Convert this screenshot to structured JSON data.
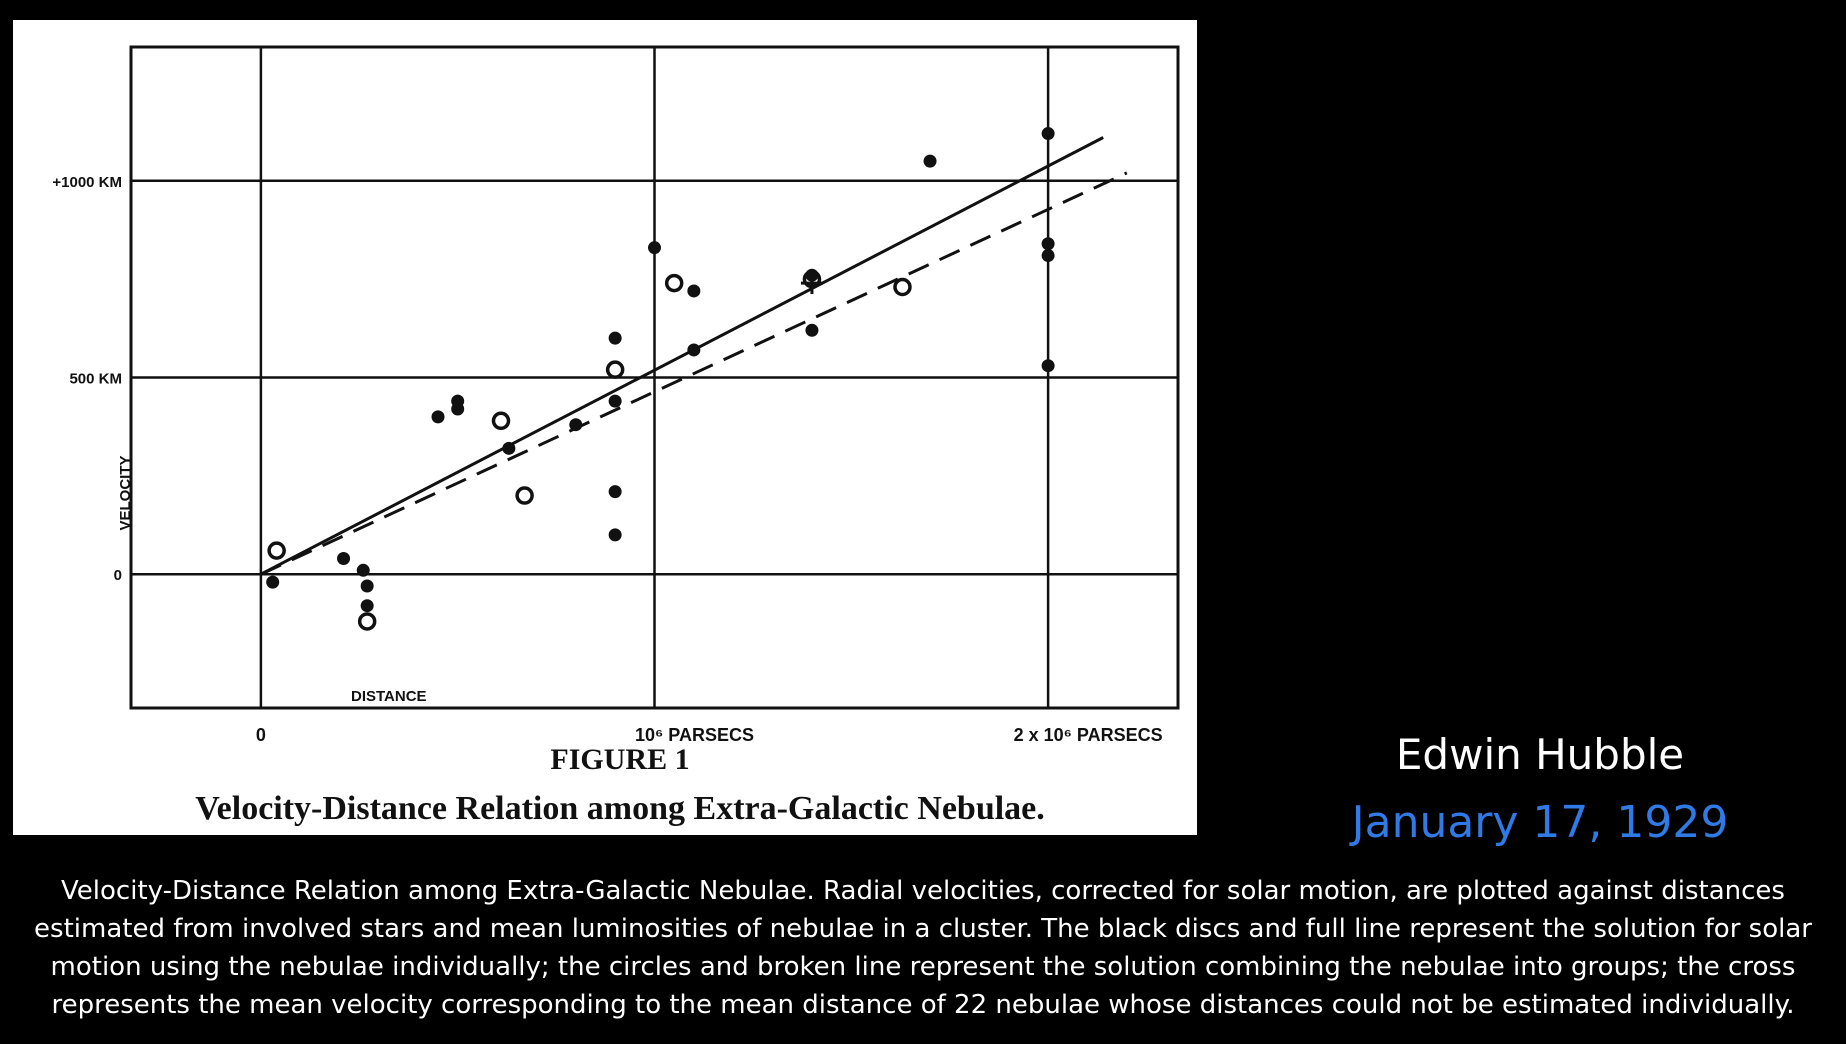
{
  "author": "Edwin Hubble",
  "date": "January 17, 1929",
  "colors": {
    "background": "#000000",
    "panel": "#ffffff",
    "ink": "#111111",
    "date_text": "#2f7ae5",
    "caption_text": "#ffffff"
  },
  "caption_lines": [
    "Velocity-Distance Relation among Extra-Galactic Nebulae. Radial velocities, corrected for solar motion, are plotted against distances",
    "estimated from involved stars and mean luminosities of nebulae in a cluster. The black discs and full line represent the solution for solar",
    "motion using the nebulae individually; the circles and broken line represent the solution combining the nebulae into groups; the cross",
    "represents the mean velocity corresponding to the mean distance of 22 nebulae whose distances could not be estimated individually."
  ],
  "chart_data": {
    "type": "scatter",
    "figure_label": "FIGURE 1",
    "title": "Velocity-Distance Relation among Extra-Galactic Nebulae.",
    "xlabel": "DISTANCE",
    "ylabel": "VELOCITY",
    "x_unit": "parsecs (x 10^6)",
    "y_unit": "km/s",
    "xlim": [
      -0.33,
      2.33
    ],
    "ylim": [
      -340,
      1340
    ],
    "grid": true,
    "x_ticks": [
      {
        "value": 0,
        "label": "0"
      },
      {
        "value": 1,
        "label": "10⁶ PARSECS"
      },
      {
        "value": 2,
        "label": "2 x 10⁶ PARSECS"
      }
    ],
    "y_ticks": [
      {
        "value": 0,
        "label": "0"
      },
      {
        "value": 500,
        "label": "500 KM"
      },
      {
        "value": 1000,
        "label": "+1000 KM"
      }
    ],
    "series": [
      {
        "marker": "filled-disc",
        "points": [
          {
            "x": 0.03,
            "y": -20
          },
          {
            "x": 0.21,
            "y": 40
          },
          {
            "x": 0.26,
            "y": 10
          },
          {
            "x": 0.27,
            "y": -30
          },
          {
            "x": 0.27,
            "y": -80
          },
          {
            "x": 0.45,
            "y": 400
          },
          {
            "x": 0.5,
            "y": 420
          },
          {
            "x": 0.5,
            "y": 440
          },
          {
            "x": 0.63,
            "y": 320
          },
          {
            "x": 0.8,
            "y": 380
          },
          {
            "x": 0.9,
            "y": 600
          },
          {
            "x": 0.9,
            "y": 440
          },
          {
            "x": 0.9,
            "y": 210
          },
          {
            "x": 0.9,
            "y": 100
          },
          {
            "x": 1.0,
            "y": 830
          },
          {
            "x": 1.1,
            "y": 720
          },
          {
            "x": 1.1,
            "y": 570
          },
          {
            "x": 1.4,
            "y": 760
          },
          {
            "x": 1.4,
            "y": 620
          },
          {
            "x": 1.7,
            "y": 1050
          },
          {
            "x": 2.0,
            "y": 1120
          },
          {
            "x": 2.0,
            "y": 840
          },
          {
            "x": 2.0,
            "y": 810
          },
          {
            "x": 2.0,
            "y": 530
          }
        ]
      },
      {
        "marker": "open-circle",
        "points": [
          {
            "x": 0.04,
            "y": 60
          },
          {
            "x": 0.27,
            "y": -120
          },
          {
            "x": 0.61,
            "y": 390
          },
          {
            "x": 0.67,
            "y": 200
          },
          {
            "x": 0.9,
            "y": 520
          },
          {
            "x": 1.05,
            "y": 740
          },
          {
            "x": 1.4,
            "y": 750
          },
          {
            "x": 1.63,
            "y": 730
          }
        ]
      },
      {
        "marker": "cross",
        "points": [
          {
            "x": 1.4,
            "y": 740
          }
        ]
      }
    ],
    "lines": [
      {
        "style": "solid",
        "x": [
          0.0,
          2.14
        ],
        "y": [
          0,
          1110
        ]
      },
      {
        "style": "dashed",
        "x": [
          0.0,
          2.2
        ],
        "y": [
          0,
          1020
        ]
      }
    ]
  }
}
